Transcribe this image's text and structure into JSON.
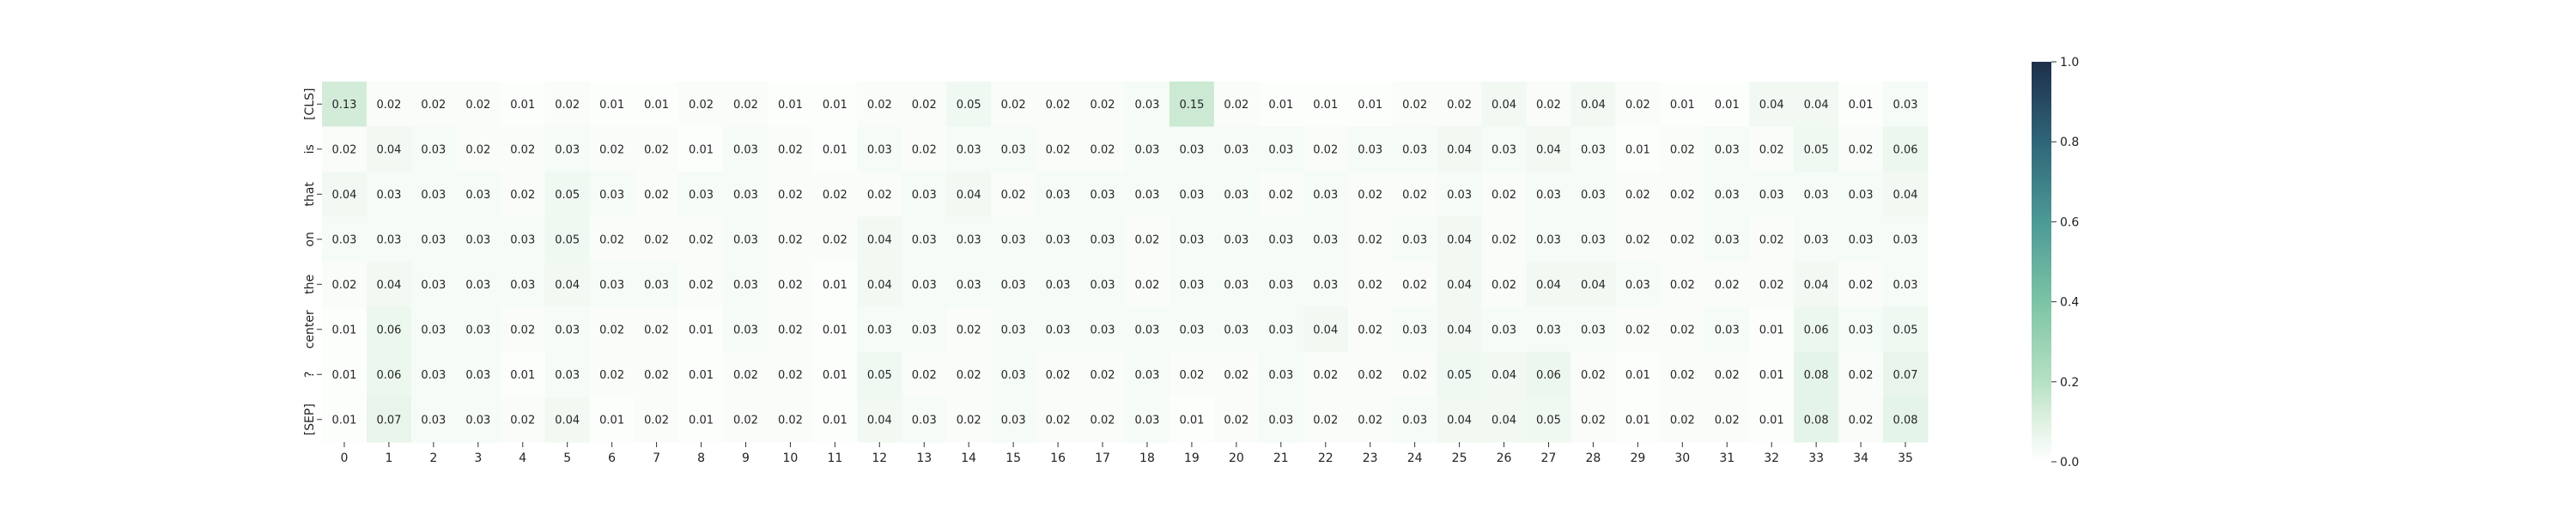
{
  "chart_data": {
    "type": "heatmap",
    "title": "",
    "xlabel": "",
    "ylabel": "",
    "x_ticks": [
      "0",
      "1",
      "2",
      "3",
      "4",
      "5",
      "6",
      "7",
      "8",
      "9",
      "10",
      "11",
      "12",
      "13",
      "14",
      "15",
      "16",
      "17",
      "18",
      "19",
      "20",
      "21",
      "22",
      "23",
      "24",
      "25",
      "26",
      "27",
      "28",
      "29",
      "30",
      "31",
      "32",
      "33",
      "34",
      "35"
    ],
    "y_ticks": [
      "[CLS]",
      "is",
      "that",
      "on",
      "the",
      "center",
      "?",
      "[SEP]"
    ],
    "values": [
      [
        0.13,
        0.02,
        0.02,
        0.02,
        0.01,
        0.02,
        0.01,
        0.01,
        0.02,
        0.02,
        0.01,
        0.01,
        0.02,
        0.02,
        0.05,
        0.02,
        0.02,
        0.02,
        0.03,
        0.15,
        0.02,
        0.01,
        0.01,
        0.01,
        0.02,
        0.02,
        0.04,
        0.02,
        0.04,
        0.02,
        0.01,
        0.01,
        0.04,
        0.04,
        0.01,
        0.03
      ],
      [
        0.02,
        0.04,
        0.03,
        0.02,
        0.02,
        0.03,
        0.02,
        0.02,
        0.01,
        0.03,
        0.02,
        0.01,
        0.03,
        0.02,
        0.03,
        0.03,
        0.02,
        0.02,
        0.03,
        0.03,
        0.03,
        0.03,
        0.02,
        0.03,
        0.03,
        0.04,
        0.03,
        0.04,
        0.03,
        0.01,
        0.02,
        0.03,
        0.02,
        0.05,
        0.02,
        0.06
      ],
      [
        0.04,
        0.03,
        0.03,
        0.03,
        0.02,
        0.05,
        0.03,
        0.02,
        0.03,
        0.03,
        0.02,
        0.02,
        0.02,
        0.03,
        0.04,
        0.02,
        0.03,
        0.03,
        0.03,
        0.03,
        0.03,
        0.02,
        0.03,
        0.02,
        0.02,
        0.03,
        0.02,
        0.03,
        0.03,
        0.02,
        0.02,
        0.03,
        0.03,
        0.03,
        0.03,
        0.04
      ],
      [
        0.03,
        0.03,
        0.03,
        0.03,
        0.03,
        0.05,
        0.02,
        0.02,
        0.02,
        0.03,
        0.02,
        0.02,
        0.04,
        0.03,
        0.03,
        0.03,
        0.03,
        0.03,
        0.02,
        0.03,
        0.03,
        0.03,
        0.03,
        0.02,
        0.03,
        0.04,
        0.02,
        0.03,
        0.03,
        0.02,
        0.02,
        0.03,
        0.02,
        0.03,
        0.03,
        0.03
      ],
      [
        0.02,
        0.04,
        0.03,
        0.03,
        0.03,
        0.04,
        0.03,
        0.03,
        0.02,
        0.03,
        0.02,
        0.01,
        0.04,
        0.03,
        0.03,
        0.03,
        0.03,
        0.03,
        0.02,
        0.03,
        0.03,
        0.03,
        0.03,
        0.02,
        0.02,
        0.04,
        0.02,
        0.04,
        0.04,
        0.03,
        0.02,
        0.02,
        0.02,
        0.04,
        0.02,
        0.03
      ],
      [
        0.01,
        0.06,
        0.03,
        0.03,
        0.02,
        0.03,
        0.02,
        0.02,
        0.01,
        0.03,
        0.02,
        0.01,
        0.03,
        0.03,
        0.02,
        0.03,
        0.03,
        0.03,
        0.03,
        0.03,
        0.03,
        0.03,
        0.04,
        0.02,
        0.03,
        0.04,
        0.03,
        0.03,
        0.03,
        0.02,
        0.02,
        0.03,
        0.01,
        0.06,
        0.03,
        0.05
      ],
      [
        0.01,
        0.06,
        0.03,
        0.03,
        0.01,
        0.03,
        0.02,
        0.02,
        0.01,
        0.02,
        0.02,
        0.01,
        0.05,
        0.02,
        0.02,
        0.03,
        0.02,
        0.02,
        0.03,
        0.02,
        0.02,
        0.03,
        0.02,
        0.02,
        0.02,
        0.05,
        0.04,
        0.06,
        0.02,
        0.01,
        0.02,
        0.02,
        0.01,
        0.08,
        0.02,
        0.07
      ],
      [
        0.01,
        0.07,
        0.03,
        0.03,
        0.02,
        0.04,
        0.01,
        0.02,
        0.01,
        0.02,
        0.02,
        0.01,
        0.04,
        0.03,
        0.02,
        0.03,
        0.02,
        0.02,
        0.03,
        0.01,
        0.02,
        0.03,
        0.02,
        0.02,
        0.03,
        0.04,
        0.04,
        0.05,
        0.02,
        0.01,
        0.02,
        0.02,
        0.01,
        0.08,
        0.02,
        0.08
      ]
    ],
    "vmin": 0.0,
    "vmax": 1.0,
    "colorbar": {
      "ticks": [
        0.0,
        0.2,
        0.4,
        0.6,
        0.8,
        1.0
      ],
      "tick_labels": [
        "0.0",
        "0.2",
        "0.4",
        "0.6",
        "0.8",
        "1.0"
      ]
    },
    "colormap": [
      "#ffffff",
      "#dff1e2",
      "#b6e1c3",
      "#7cc3a5",
      "#4c9a96",
      "#2f6578",
      "#1e2f4a"
    ],
    "grid": false,
    "legend": "colorbar-right"
  }
}
